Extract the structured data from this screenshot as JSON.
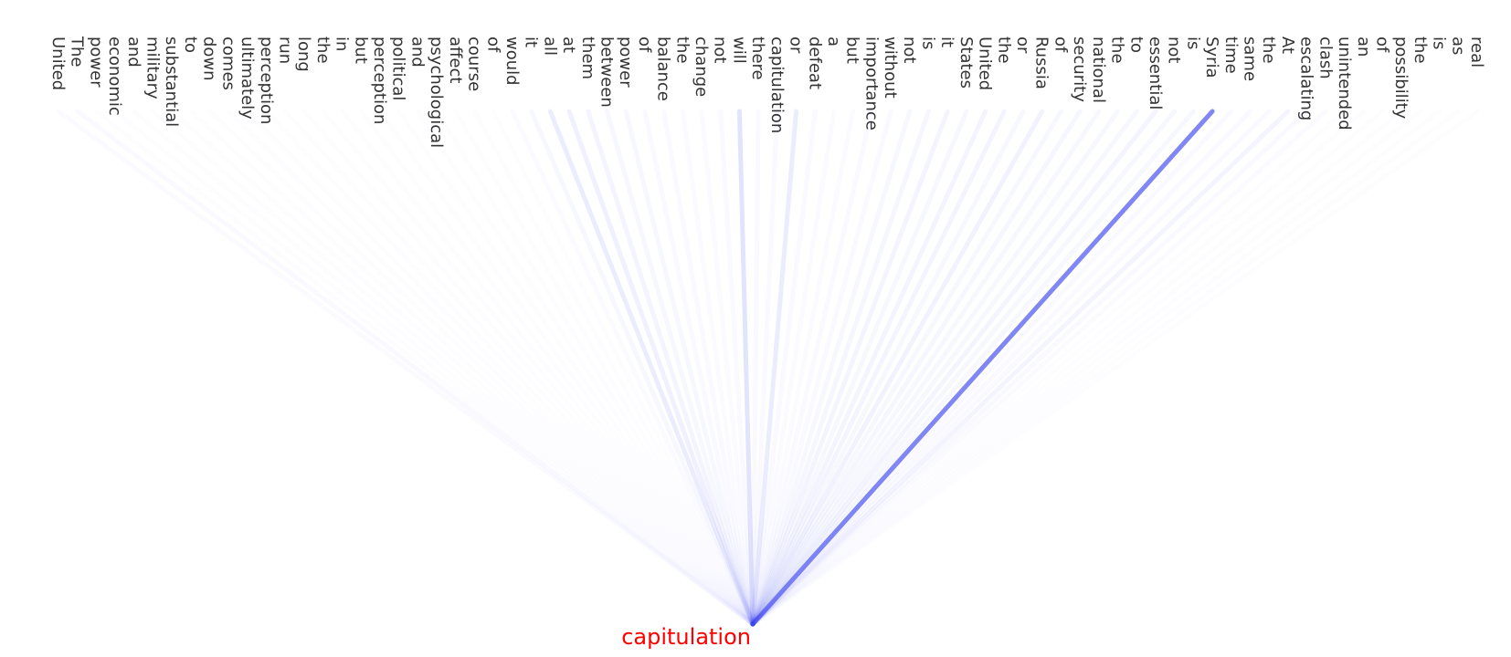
{
  "tokens": [
    "United",
    "The",
    "power",
    "economic",
    "and",
    "military",
    "substantial",
    "to",
    "down",
    "comes",
    "ultimately",
    "perception",
    "run",
    "long",
    "the",
    "in",
    "but",
    "perception",
    "political",
    "and",
    "psychological",
    "affect",
    "course",
    "of",
    "would",
    "it",
    "all",
    "at",
    "them",
    "between",
    "power",
    "of",
    "balance",
    "the",
    "change",
    "not",
    "will",
    "there",
    "capitulation",
    "or",
    "defeat",
    "a",
    "but",
    "importance",
    "without",
    "not",
    "is",
    "it",
    "States",
    "United",
    "the",
    "or",
    "Russia",
    "of",
    "security",
    "national",
    "the",
    "to",
    "essential",
    "not",
    "is",
    "Syria",
    "time",
    "same",
    "the",
    "At",
    "escalating",
    "clash",
    "unintended",
    "an",
    "of",
    "possibility",
    "the",
    "is",
    "as",
    "real"
  ],
  "weights": [
    0.02,
    0.03,
    0.01,
    0.01,
    0.01,
    0.01,
    0.01,
    0.01,
    0.01,
    0.01,
    0.01,
    0.01,
    0.01,
    0.01,
    0.01,
    0.01,
    0.01,
    0.01,
    0.01,
    0.01,
    0.01,
    0.01,
    0.01,
    0.01,
    0.02,
    0.04,
    0.1,
    0.08,
    0.06,
    0.04,
    0.04,
    0.03,
    0.03,
    0.02,
    0.02,
    0.03,
    0.15,
    0.03,
    0.03,
    0.1,
    0.03,
    0.02,
    0.02,
    0.03,
    0.03,
    0.04,
    0.05,
    0.06,
    0.04,
    0.06,
    0.06,
    0.04,
    0.07,
    0.04,
    0.05,
    0.04,
    0.04,
    0.04,
    0.06,
    0.04,
    0.04,
    0.65,
    0.03,
    0.03,
    0.03,
    0.06,
    0.03,
    0.02,
    0.01,
    0.01,
    0.01,
    0.01,
    0.01,
    0.01,
    0.01,
    0.01
  ],
  "target": "capitulation",
  "line_color": "#3c46f0",
  "target_color": "#ff0000"
}
